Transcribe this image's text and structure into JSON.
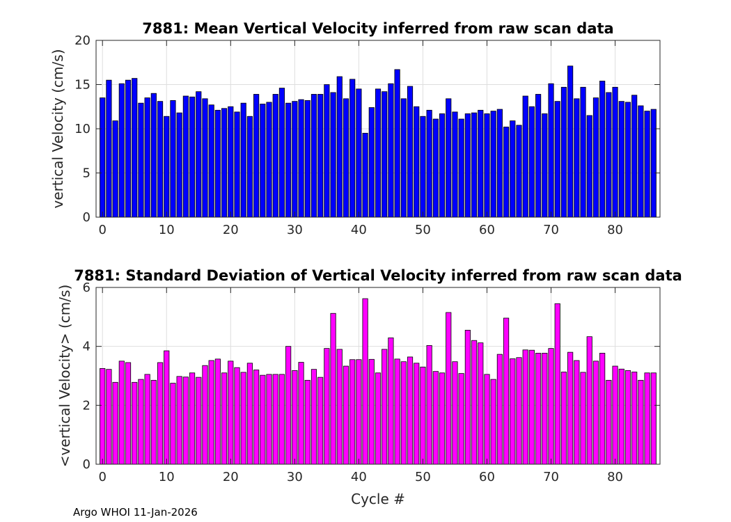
{
  "footer": "Argo WHOI 11-Jan-2026",
  "chart_data": [
    {
      "type": "bar",
      "title": "7881: Mean Vertical Velocity inferred from raw scan data",
      "xlabel": "",
      "ylabel": "vertical Velocity (cm/s)",
      "xlim": [
        -1,
        87
      ],
      "ylim": [
        0,
        20
      ],
      "xticks": [
        0,
        10,
        20,
        30,
        40,
        50,
        60,
        70,
        80
      ],
      "yticks": [
        0,
        5,
        10,
        15,
        20
      ],
      "grid": true,
      "color": "#0000ff",
      "x_start": 0,
      "values": [
        13.5,
        15.5,
        10.9,
        15.1,
        15.5,
        15.7,
        12.9,
        13.5,
        14.0,
        13.1,
        11.4,
        13.2,
        11.8,
        13.7,
        13.6,
        14.2,
        13.4,
        12.7,
        12.1,
        12.3,
        12.5,
        11.9,
        12.9,
        11.4,
        13.9,
        12.8,
        13.0,
        13.9,
        14.6,
        12.9,
        13.1,
        13.3,
        13.2,
        13.9,
        13.9,
        15.0,
        14.1,
        15.9,
        13.4,
        15.6,
        14.5,
        9.5,
        12.4,
        14.5,
        14.2,
        15.1,
        16.7,
        13.4,
        14.8,
        12.5,
        11.4,
        12.1,
        11.1,
        11.7,
        13.4,
        11.9,
        11.1,
        11.7,
        11.8,
        12.1,
        11.7,
        12.0,
        12.2,
        10.2,
        10.9,
        10.4,
        13.7,
        12.5,
        13.9,
        11.7,
        15.1,
        13.1,
        14.7,
        17.1,
        13.4,
        14.7,
        11.5,
        13.5,
        15.4,
        14.1,
        14.7,
        13.1,
        13.0,
        13.8,
        12.6,
        12.0,
        12.2
      ]
    },
    {
      "type": "bar",
      "title": "7881: Standard Deviation of Vertical Velocity inferred from raw scan data",
      "xlabel": "Cycle #",
      "ylabel": "<vertical Velocity> (cm/s)",
      "xlim": [
        -1,
        87
      ],
      "ylim": [
        0,
        6
      ],
      "xticks": [
        0,
        10,
        20,
        30,
        40,
        50,
        60,
        70,
        80
      ],
      "yticks": [
        0,
        2,
        4,
        6
      ],
      "grid": true,
      "color": "#ff00ff",
      "x_start": 0,
      "values": [
        3.25,
        3.22,
        2.78,
        3.5,
        3.45,
        2.78,
        2.88,
        3.05,
        2.85,
        3.45,
        3.85,
        2.75,
        2.98,
        2.96,
        3.1,
        2.95,
        3.35,
        3.52,
        3.57,
        3.1,
        3.5,
        3.28,
        3.12,
        3.43,
        3.2,
        3.02,
        3.05,
        3.05,
        3.05,
        4.0,
        3.18,
        3.46,
        2.85,
        3.22,
        2.95,
        3.93,
        5.12,
        3.9,
        3.33,
        3.55,
        3.55,
        5.62,
        3.56,
        3.1,
        3.9,
        4.29,
        3.57,
        3.48,
        3.64,
        3.43,
        3.3,
        4.03,
        3.15,
        3.1,
        5.15,
        3.48,
        3.08,
        4.55,
        4.2,
        4.12,
        3.05,
        2.88,
        3.73,
        4.96,
        3.58,
        3.62,
        3.88,
        3.87,
        3.77,
        3.77,
        3.93,
        5.45,
        3.13,
        3.8,
        3.52,
        3.12,
        4.33,
        3.5,
        3.77,
        2.85,
        3.33,
        3.23,
        3.18,
        3.13,
        2.85,
        3.1,
        3.1
      ]
    }
  ]
}
